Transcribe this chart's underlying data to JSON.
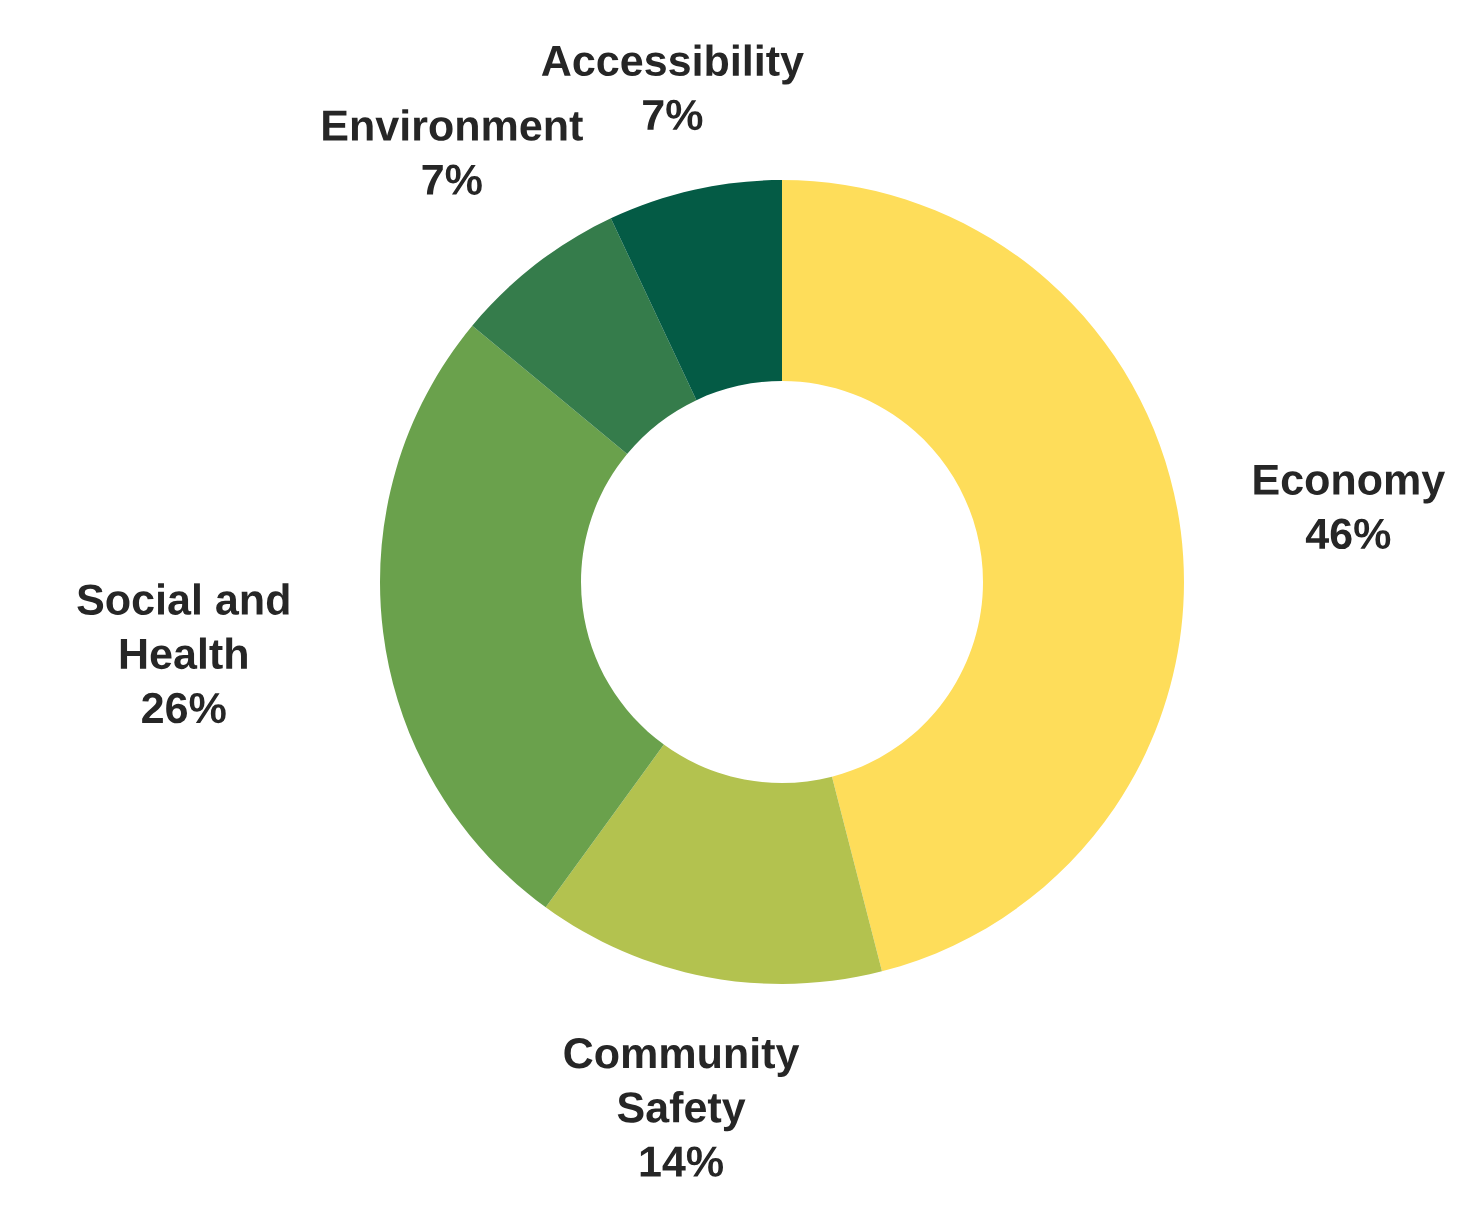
{
  "chart_data": {
    "type": "donut",
    "categories": [
      "Economy",
      "Community\nSafety",
      "Social and\nHealth",
      "Environment",
      "Accessibility"
    ],
    "values": [
      46,
      14,
      26,
      7,
      7
    ],
    "value_labels": [
      "46%",
      "14%",
      "26%",
      "7%",
      "7%"
    ],
    "colors": [
      "#fedd5a",
      "#b3c24f",
      "#6aa14c",
      "#357c4b",
      "#045b45"
    ],
    "legend": false
  }
}
